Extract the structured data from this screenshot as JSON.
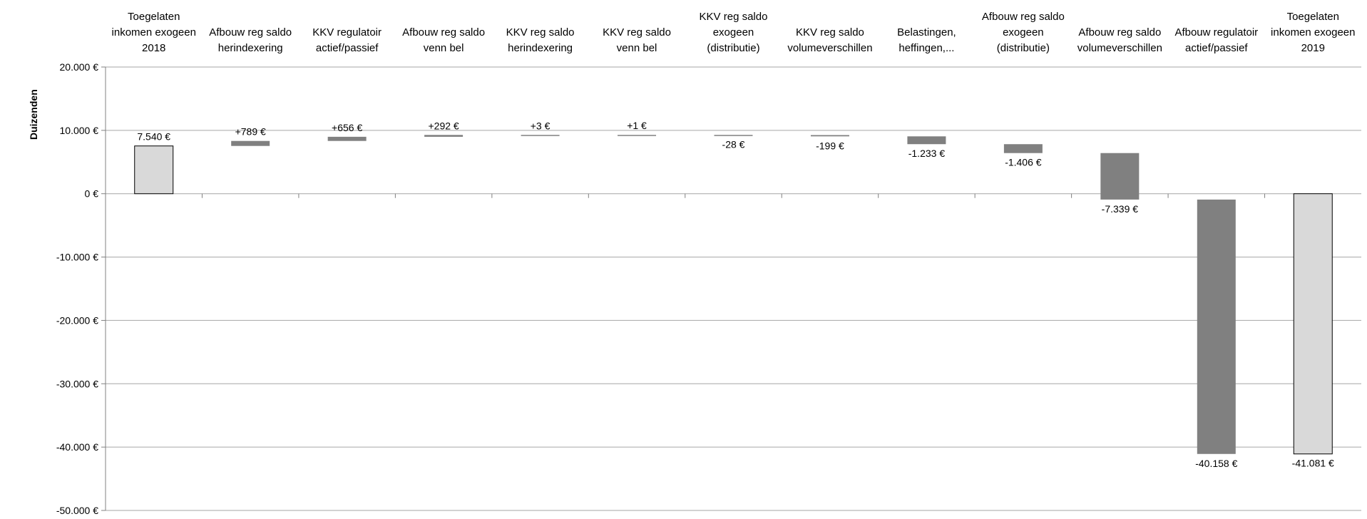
{
  "chart_data": {
    "type": "waterfall",
    "title": "",
    "ylabel": "Duizenden",
    "ylim": [
      -50000,
      20000
    ],
    "yticks": [
      20000,
      10000,
      0,
      -10000,
      -20000,
      -30000,
      -40000,
      -50000
    ],
    "ytick_labels": [
      "20.000 €",
      "10.000 €",
      "0 €",
      "-10.000 €",
      "-20.000 €",
      "-30.000 €",
      "-40.000 €",
      "-50.000 €"
    ],
    "grid": true,
    "legend": "none",
    "categories": [
      [
        "Toegelaten",
        "inkomen exogeen",
        "2018"
      ],
      [
        "Afbouw reg saldo",
        "herindexering"
      ],
      [
        "KKV regulatoir",
        "actief/passief"
      ],
      [
        "Afbouw reg saldo",
        "venn bel"
      ],
      [
        "KKV reg saldo",
        "herindexering"
      ],
      [
        "KKV reg saldo",
        "venn bel"
      ],
      [
        "KKV reg saldo",
        "exogeen",
        "(distributie)"
      ],
      [
        "KKV reg saldo",
        "volumeverschillen"
      ],
      [
        "Belastingen,",
        "heffingen,..."
      ],
      [
        "Afbouw reg saldo",
        "exogeen",
        "(distributie)"
      ],
      [
        "Afbouw reg saldo",
        "volumeverschillen"
      ],
      [
        "Afbouw regulatoir",
        "actief/passief"
      ],
      [
        "Toegelaten",
        "inkomen exogeen",
        "2019"
      ]
    ],
    "kinds": [
      "total",
      "delta",
      "delta",
      "delta",
      "delta",
      "delta",
      "delta",
      "delta",
      "delta",
      "delta",
      "delta",
      "delta",
      "total"
    ],
    "values": [
      7540,
      789,
      656,
      292,
      3,
      1,
      -28,
      -199,
      -1233,
      -1406,
      -7339,
      -40158,
      -41081
    ],
    "data_labels": [
      "7.540 €",
      "+789 €",
      "+656 €",
      "+292 €",
      "+3 €",
      "+1 €",
      "-28 €",
      "-199 €",
      "-1.233 €",
      "-1.406 €",
      "-7.339 €",
      "-40.158 €",
      "-41.081 €"
    ],
    "colors": {
      "total_fill": "#d9d9d9",
      "total_stroke": "#000000",
      "delta_fill": "#808080",
      "grid": "#a6a6a6",
      "axis": "#808080"
    }
  }
}
